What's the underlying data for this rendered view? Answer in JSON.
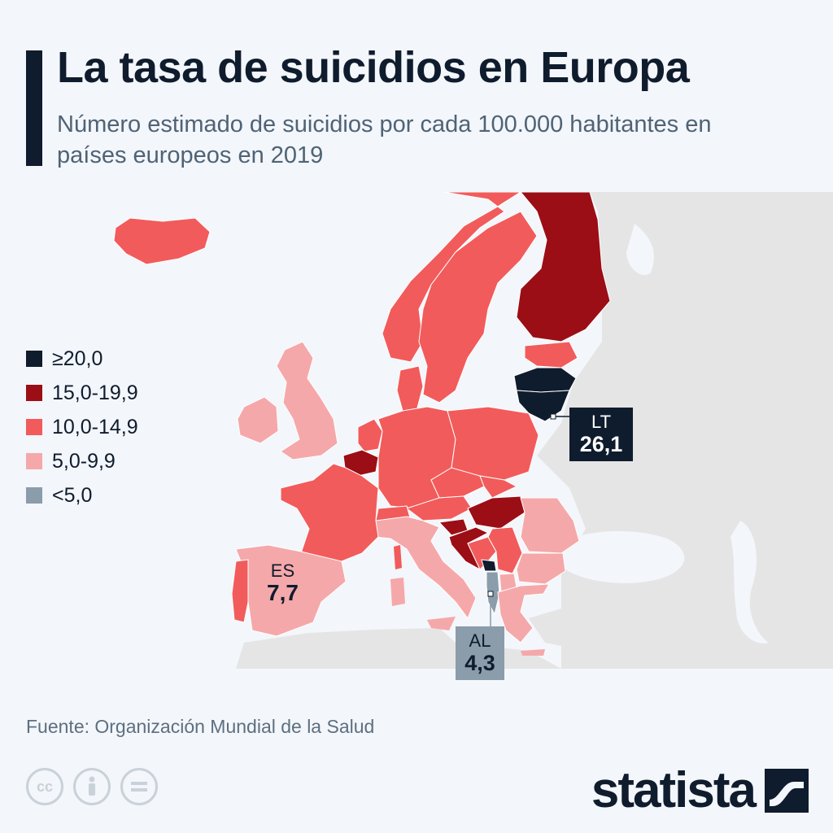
{
  "header": {
    "title": "La tasa de suicidios en Europa",
    "subtitle": "Número estimado de suicidios por cada 100.000 habitantes en países europeos en 2019"
  },
  "legend": [
    {
      "label": "≥20,0",
      "color": "#0f1c2d"
    },
    {
      "label": "15,0-19,9",
      "color": "#9b0e16"
    },
    {
      "label": "10,0-14,9",
      "color": "#f25b5b"
    },
    {
      "label": "5,0-9,9",
      "color": "#f5a8aa"
    },
    {
      "label": "<5,0",
      "color": "#8b9cab"
    }
  ],
  "colors": {
    "no_data": "#e5e5e5",
    "sea": "#f3f6fa",
    "border": "#ffffff"
  },
  "callouts": {
    "lt": {
      "code": "LT",
      "value": "26,1"
    },
    "es": {
      "code": "ES",
      "value": "7,7"
    },
    "al": {
      "code": "AL",
      "value": "4,3"
    }
  },
  "source": "Fuente: Organización Mundial de la Salud",
  "brand": "statista",
  "icons": [
    "cc-icon",
    "attribution-icon",
    "no-derivatives-icon"
  ]
}
